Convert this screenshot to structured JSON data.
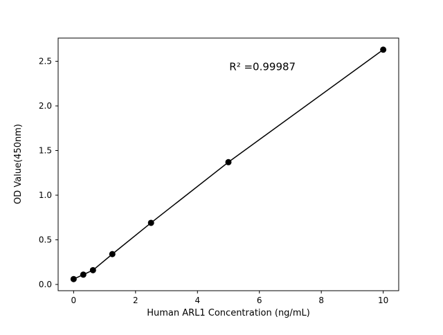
{
  "figure": {
    "background": "#ffffff"
  },
  "chart_data": {
    "type": "scatter",
    "x": [
      0,
      0.3125,
      0.625,
      1.25,
      2.5,
      5,
      10
    ],
    "y": [
      0.06,
      0.11,
      0.16,
      0.34,
      0.69,
      1.37,
      2.63
    ],
    "title": "",
    "xlabel": "Human ARL1 Concentration (ng/mL)",
    "ylabel": "OD Value(450nm)",
    "xlim": [
      -0.5,
      10.5
    ],
    "ylim": [
      -0.07,
      2.76
    ],
    "xticks": [
      0,
      2,
      4,
      6,
      8,
      10
    ],
    "yticks": [
      0.0,
      0.5,
      1.0,
      1.5,
      2.0,
      2.5
    ],
    "grid": false,
    "legend_position": "none",
    "line": true,
    "line_color": "#000000",
    "marker_color": "#000000",
    "annotation": {
      "text": "R² =0.99987",
      "x": 6.1,
      "y": 2.4
    }
  }
}
